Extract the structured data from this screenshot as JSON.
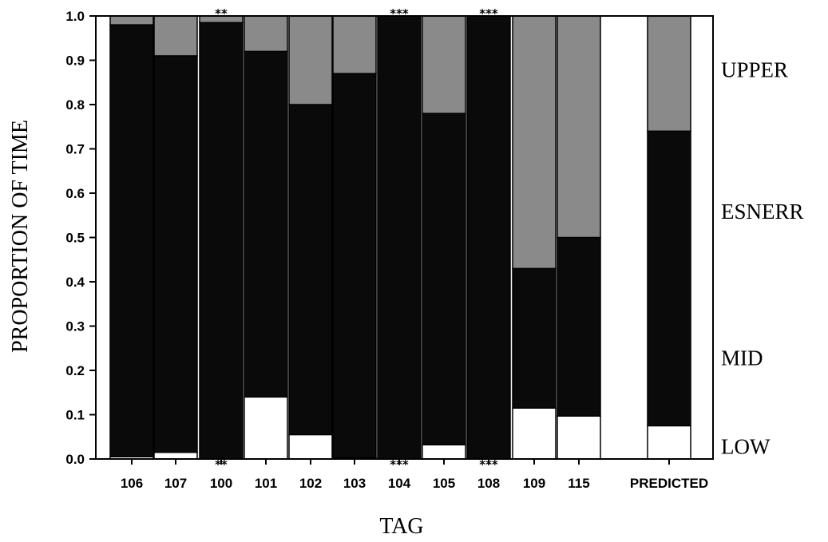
{
  "chart_data": {
    "type": "bar",
    "stacked": true,
    "xlabel": "TAG",
    "ylabel": "PROPORTION OF TIME",
    "ylim": [
      0,
      1.0
    ],
    "yticks": [
      "0.0",
      "0.1",
      "0.2",
      "0.3",
      "0.4",
      "0.5",
      "0.6",
      "0.7",
      "0.8",
      "0.9",
      "1.0"
    ],
    "categories": [
      "106",
      "107",
      "100",
      "101",
      "102",
      "103",
      "104",
      "105",
      "108",
      "109",
      "115",
      "PREDICTED"
    ],
    "series": [
      {
        "color": "#ffffff",
        "values": [
          0.005,
          0.015,
          0.0,
          0.14,
          0.055,
          0.003,
          0.0,
          0.032,
          0.0,
          0.115,
          0.097,
          0.075
        ]
      },
      {
        "color": "#0a0a0a",
        "values": [
          0.975,
          0.895,
          0.985,
          0.78,
          0.745,
          0.867,
          1.0,
          0.748,
          1.0,
          0.315,
          0.403,
          0.665
        ]
      },
      {
        "color": "#8a8a8a",
        "values": [
          0.02,
          0.09,
          0.015,
          0.08,
          0.2,
          0.13,
          0.0,
          0.22,
          0.0,
          0.57,
          0.5,
          0.26
        ]
      }
    ],
    "annotations": [
      {
        "category": "100",
        "text": "**"
      },
      {
        "category": "104",
        "text": "***"
      },
      {
        "category": "108",
        "text": "***"
      }
    ],
    "zone_labels": [
      {
        "text": "UPPER",
        "y": 0.88
      },
      {
        "text": "ESNERR",
        "y": 0.56
      },
      {
        "text": "MID",
        "y": 0.23
      },
      {
        "text": "LOW",
        "y": 0.03
      }
    ],
    "grid": false,
    "legend": "none"
  }
}
